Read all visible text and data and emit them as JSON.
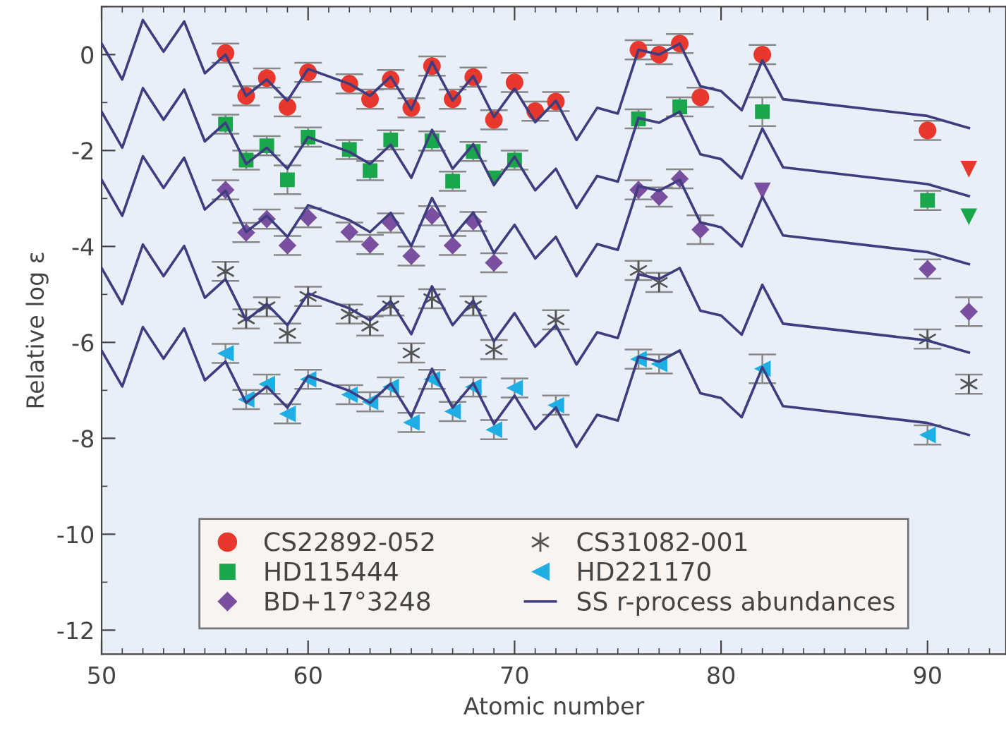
{
  "chart_data": {
    "type": "scatter",
    "xlabel": "Atomic number",
    "ylabel": "Relative log ε",
    "xlim": [
      50,
      93.8
    ],
    "ylim": [
      -12.5,
      1
    ],
    "xticks": [
      50,
      60,
      70,
      80,
      90
    ],
    "yticks": [
      -12,
      -10,
      -8,
      -6,
      -4,
      -2,
      0
    ],
    "grid": false,
    "legend": "bottom",
    "series": [
      {
        "name": "CS22892-052",
        "marker": "circle",
        "color": "#e8382e",
        "x": [
          56,
          57,
          58,
          59,
          60,
          62,
          63,
          64,
          65,
          66,
          67,
          68,
          69,
          70,
          71,
          72,
          76,
          77,
          78,
          79,
          82,
          90
        ],
        "values": [
          0.03,
          -0.86,
          -0.49,
          -1.09,
          -0.37,
          -0.61,
          -0.93,
          -0.52,
          -1.11,
          -0.24,
          -0.93,
          -0.47,
          -1.36,
          -0.58,
          -1.18,
          -0.98,
          0.1,
          0.0,
          0.23,
          -0.89,
          0.0,
          -1.58
        ],
        "errors": [
          0.2,
          0.2,
          0.2,
          0.2,
          0.2,
          0.2,
          0.2,
          0.2,
          0.2,
          0.2,
          0.2,
          0.2,
          0.2,
          0.2,
          0.2,
          0.2,
          0.2,
          0.2,
          0.2,
          0.2,
          0.2,
          0.2
        ]
      },
      {
        "name": "HD115444",
        "marker": "square",
        "color": "#1aa64a",
        "x": [
          56,
          57,
          58,
          59,
          60,
          62,
          63,
          64,
          66,
          67,
          68,
          70,
          76,
          78,
          82,
          90
        ],
        "values": [
          -1.45,
          -2.2,
          -1.9,
          -2.61,
          -1.72,
          -1.98,
          -2.42,
          -1.78,
          -1.8,
          -2.64,
          -2.02,
          -2.2,
          -1.34,
          -1.09,
          -1.19,
          -3.04
        ],
        "errors": [
          0.2,
          0.2,
          0.2,
          0.3,
          0.2,
          0.2,
          0.2,
          0.2,
          0.2,
          0.2,
          0.2,
          0.2,
          0.2,
          0.2,
          0.3,
          0.2
        ]
      },
      {
        "name": "BD+17°3248",
        "marker": "diamond",
        "color": "#7b4fa0",
        "x": [
          56,
          57,
          58,
          59,
          60,
          62,
          63,
          64,
          65,
          66,
          67,
          68,
          69,
          76,
          77,
          78,
          79,
          90,
          92
        ],
        "values": [
          -2.82,
          -3.71,
          -3.43,
          -3.98,
          -3.4,
          -3.7,
          -3.96,
          -3.51,
          -4.2,
          -3.36,
          -3.98,
          -3.48,
          -4.34,
          -2.82,
          -2.97,
          -2.59,
          -3.65,
          -4.47,
          -5.36
        ],
        "errors": [
          0.2,
          0.2,
          0.2,
          0.2,
          0.2,
          0.2,
          0.2,
          0.2,
          0.2,
          0.2,
          0.2,
          0.2,
          0.2,
          0.2,
          0.2,
          0.2,
          0.3,
          0.2,
          0.3
        ]
      },
      {
        "name": "CS31082-001",
        "marker": "cross",
        "color": "#555555",
        "x": [
          56,
          57,
          58,
          59,
          60,
          62,
          63,
          64,
          65,
          66,
          68,
          69,
          72,
          76,
          77,
          90,
          92
        ],
        "values": [
          -4.52,
          -5.51,
          -5.26,
          -5.81,
          -5.04,
          -5.41,
          -5.66,
          -5.24,
          -6.22,
          -5.09,
          -5.24,
          -6.15,
          -5.53,
          -4.5,
          -4.75,
          -5.93,
          -6.87
        ],
        "errors": [
          0.2,
          0.2,
          0.2,
          0.2,
          0.2,
          0.2,
          0.2,
          0.2,
          0.2,
          0.2,
          0.2,
          0.2,
          0.2,
          0.2,
          0.2,
          0.2,
          0.2
        ]
      },
      {
        "name": "HD221170",
        "marker": "triangle-left",
        "color": "#1eaee6",
        "x": [
          56,
          57,
          58,
          59,
          60,
          62,
          63,
          64,
          65,
          66,
          67,
          68,
          69,
          70,
          72,
          76,
          77,
          82,
          90
        ],
        "values": [
          -6.23,
          -7.19,
          -6.87,
          -7.49,
          -6.77,
          -7.09,
          -7.24,
          -6.93,
          -7.67,
          -6.77,
          -7.44,
          -6.93,
          -7.82,
          -6.95,
          -7.31,
          -6.35,
          -6.45,
          -6.55,
          -7.93
        ],
        "errors": [
          0.2,
          0.2,
          0.2,
          0.2,
          0.2,
          0.2,
          0.2,
          0.2,
          0.2,
          0.2,
          0.2,
          0.2,
          0.2,
          0.2,
          0.2,
          0.2,
          0.2,
          0.3,
          0.2
        ]
      },
      {
        "marker": "triangle-down",
        "color": "#e8382e",
        "x": [
          92
        ],
        "values": [
          -2.39
        ]
      },
      {
        "marker": "triangle-down",
        "color": "#1aa64a",
        "x": [
          69,
          92
        ],
        "values": [
          -2.59,
          -3.38
        ]
      },
      {
        "marker": "triangle-down",
        "color": "#7b4fa0",
        "x": [
          82
        ],
        "values": [
          -2.84
        ]
      },
      {
        "name": "SS r-process abundances",
        "type": "line",
        "color": "#3d3d80",
        "x": [
          50,
          51,
          52,
          53,
          54,
          55,
          56,
          57,
          58,
          59,
          60,
          62,
          63,
          64,
          65,
          66,
          67,
          68,
          69,
          70,
          71,
          72,
          73,
          74,
          75,
          76,
          77,
          78,
          79,
          80,
          81,
          82,
          83,
          90,
          92
        ],
        "values": [
          0.23,
          -0.52,
          0.72,
          0.06,
          0.69,
          -0.39,
          0,
          -0.86,
          -0.52,
          -0.96,
          -0.3,
          -0.61,
          -0.86,
          -0.46,
          -1.15,
          -0.15,
          -0.96,
          -0.45,
          -1.3,
          -0.71,
          -1.41,
          -0.96,
          -1.78,
          -1.11,
          -1.23,
          0.1,
          0,
          0.23,
          -0.66,
          -0.76,
          -1.16,
          -0.12,
          -0.93,
          -1.28,
          -1.53
        ]
      },
      {
        "type": "line",
        "color": "#3d3d80",
        "x": [
          50,
          51,
          52,
          53,
          54,
          55,
          56,
          57,
          58,
          59,
          60,
          62,
          63,
          64,
          65,
          66,
          67,
          68,
          69,
          70,
          71,
          72,
          73,
          74,
          75,
          76,
          77,
          78,
          79,
          80,
          81,
          82,
          83,
          90,
          92
        ],
        "values": [
          -1.19,
          -1.94,
          -0.7,
          -1.36,
          -0.73,
          -1.81,
          -1.42,
          -2.28,
          -1.94,
          -2.38,
          -1.72,
          -2.03,
          -2.28,
          -1.88,
          -2.57,
          -1.57,
          -2.38,
          -1.87,
          -2.72,
          -2.13,
          -2.83,
          -2.38,
          -3.2,
          -2.53,
          -2.65,
          -1.32,
          -1.42,
          -1.19,
          -2.08,
          -2.18,
          -2.58,
          -1.54,
          -2.35,
          -2.7,
          -2.95
        ]
      },
      {
        "type": "line",
        "color": "#3d3d80",
        "x": [
          50,
          51,
          52,
          53,
          54,
          55,
          56,
          57,
          58,
          59,
          60,
          62,
          63,
          64,
          65,
          66,
          67,
          68,
          69,
          70,
          71,
          72,
          73,
          74,
          75,
          76,
          77,
          78,
          79,
          80,
          81,
          82,
          83,
          90,
          92
        ],
        "values": [
          -2.61,
          -3.36,
          -2.12,
          -2.78,
          -2.15,
          -3.23,
          -2.84,
          -3.7,
          -3.36,
          -3.8,
          -3.14,
          -3.45,
          -3.7,
          -3.3,
          -3.99,
          -2.99,
          -3.8,
          -3.29,
          -4.14,
          -3.55,
          -4.25,
          -3.8,
          -4.62,
          -3.95,
          -4.07,
          -2.74,
          -2.84,
          -2.61,
          -3.5,
          -3.6,
          -4,
          -2.96,
          -3.77,
          -4.12,
          -4.37
        ]
      },
      {
        "type": "line",
        "color": "#3d3d80",
        "x": [
          50,
          51,
          52,
          53,
          54,
          55,
          56,
          57,
          58,
          59,
          60,
          62,
          63,
          64,
          65,
          66,
          67,
          68,
          69,
          70,
          71,
          72,
          73,
          74,
          75,
          76,
          77,
          78,
          79,
          80,
          81,
          82,
          83,
          90,
          92
        ],
        "values": [
          -4.45,
          -5.2,
          -3.96,
          -4.62,
          -3.99,
          -5.07,
          -4.68,
          -5.54,
          -5.2,
          -5.64,
          -4.98,
          -5.29,
          -5.54,
          -5.14,
          -5.83,
          -4.83,
          -5.64,
          -5.13,
          -5.98,
          -5.39,
          -6.09,
          -5.64,
          -6.46,
          -5.79,
          -5.91,
          -4.58,
          -4.68,
          -4.45,
          -5.34,
          -5.44,
          -5.84,
          -4.8,
          -5.61,
          -5.96,
          -6.21
        ]
      },
      {
        "type": "line",
        "color": "#3d3d80",
        "x": [
          50,
          51,
          52,
          53,
          54,
          55,
          56,
          57,
          58,
          59,
          60,
          62,
          63,
          64,
          65,
          66,
          67,
          68,
          69,
          70,
          71,
          72,
          73,
          74,
          75,
          76,
          77,
          78,
          79,
          80,
          81,
          82,
          83,
          90,
          92
        ],
        "values": [
          -6.17,
          -6.92,
          -5.68,
          -6.34,
          -5.71,
          -6.79,
          -6.4,
          -7.26,
          -6.92,
          -7.36,
          -6.7,
          -7.01,
          -7.26,
          -6.86,
          -7.55,
          -6.55,
          -7.36,
          -6.85,
          -7.7,
          -7.11,
          -7.81,
          -7.36,
          -8.18,
          -7.51,
          -7.63,
          -6.3,
          -6.4,
          -6.17,
          -7.06,
          -7.16,
          -7.56,
          -6.52,
          -7.33,
          -7.68,
          -7.93
        ]
      }
    ]
  }
}
